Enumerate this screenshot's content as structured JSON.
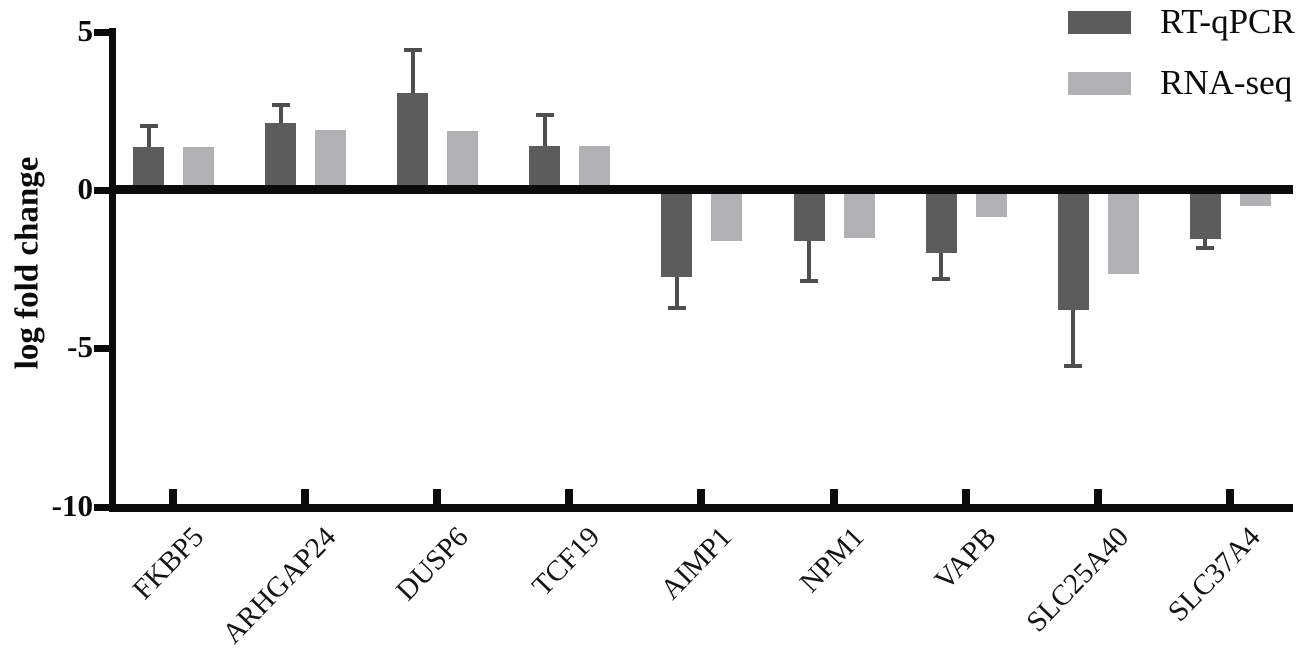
{
  "chart_data": {
    "type": "bar",
    "title": "",
    "xlabel": "",
    "ylabel": "log fold change",
    "ylim": [
      -10,
      5
    ],
    "yticks": [
      5,
      0,
      -5,
      -10
    ],
    "grid": false,
    "legend_position": "top-right",
    "axis_color": "#0b0b0b",
    "error_bar_color": "#4f4f4f",
    "categories": [
      "FKBP5",
      "ARHGAP24",
      "DUSP6",
      "TCF19",
      "AIMP1",
      "NPM1",
      "VAPB",
      "SLC25A40",
      "SLC37A4"
    ],
    "series": [
      {
        "name": "RT-qPCR",
        "color": "#5c5c5c",
        "values": [
          1.35,
          2.1,
          3.05,
          1.4,
          -2.75,
          -1.6,
          -2.0,
          -3.8,
          -1.55
        ],
        "errors": [
          0.7,
          0.6,
          1.4,
          1.0,
          1.0,
          1.3,
          0.85,
          1.8,
          0.3
        ]
      },
      {
        "name": "RNA-seq",
        "color": "#b1b1b3",
        "values": [
          1.35,
          1.9,
          1.85,
          1.4,
          -1.6,
          -1.5,
          -0.85,
          -2.65,
          -0.5
        ],
        "errors": null
      }
    ]
  }
}
